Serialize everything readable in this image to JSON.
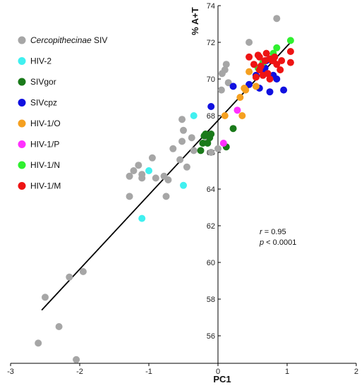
{
  "chart_data": {
    "type": "scatter",
    "xlabel": "PC1",
    "ylabel": "% A+T",
    "xlim": [
      -3,
      2
    ],
    "ylim": [
      54.5,
      74
    ],
    "xticks": [
      -3,
      -2,
      -1,
      0,
      1,
      2
    ],
    "yticks": [
      56,
      58,
      60,
      62,
      64,
      66,
      68,
      70,
      72,
      74
    ],
    "legend_position": "top-left",
    "grid": false,
    "series": [
      {
        "name": "Cercopithecinae SIV",
        "name_italic": "Cercopithecinae",
        "name_rest": " SIV",
        "color": "#a6a6a6",
        "points": [
          [
            -2.6,
            55.6
          ],
          [
            -2.3,
            56.5
          ],
          [
            -2.05,
            54.7
          ],
          [
            -2.5,
            58.1
          ],
          [
            -2.15,
            59.2
          ],
          [
            -1.95,
            59.5
          ],
          [
            -1.28,
            63.6
          ],
          [
            -1.28,
            64.7
          ],
          [
            -1.22,
            65.0
          ],
          [
            -1.15,
            65.3
          ],
          [
            -1.1,
            64.6
          ],
          [
            -1.1,
            64.8
          ],
          [
            -0.95,
            65.7
          ],
          [
            -0.9,
            64.6
          ],
          [
            -0.78,
            64.7
          ],
          [
            -0.75,
            63.6
          ],
          [
            -0.72,
            64.5
          ],
          [
            -0.65,
            66.2
          ],
          [
            -0.55,
            65.6
          ],
          [
            -0.52,
            66.6
          ],
          [
            -0.45,
            65.2
          ],
          [
            -0.5,
            67.2
          ],
          [
            -0.52,
            67.8
          ],
          [
            -0.38,
            66.8
          ],
          [
            -0.35,
            66.1
          ],
          [
            -0.15,
            66.6
          ],
          [
            -0.1,
            66.0
          ],
          [
            0.0,
            66.2
          ],
          [
            0.05,
            69.4
          ],
          [
            0.06,
            70.3
          ],
          [
            0.1,
            70.5
          ],
          [
            0.12,
            70.8
          ],
          [
            0.15,
            69.8
          ],
          [
            0.45,
            72.0
          ],
          [
            0.85,
            73.3
          ]
        ]
      },
      {
        "name": "HIV-2",
        "color": "#40f0f0",
        "points": [
          [
            -1.1,
            62.4
          ],
          [
            -1.0,
            65.0
          ],
          [
            -0.5,
            64.2
          ],
          [
            -0.35,
            68.0
          ]
        ]
      },
      {
        "name": "SIVgor",
        "color": "#1a7a1a",
        "points": [
          [
            -0.25,
            66.1
          ],
          [
            -0.22,
            66.5
          ],
          [
            -0.2,
            66.9
          ],
          [
            -0.18,
            67.0
          ],
          [
            -0.15,
            66.5
          ],
          [
            -0.12,
            66.8
          ],
          [
            -0.1,
            67.0
          ],
          [
            0.12,
            66.3
          ],
          [
            0.22,
            67.3
          ]
        ]
      },
      {
        "name": "SIVcpz",
        "color": "#1010e0",
        "points": [
          [
            -0.1,
            68.5
          ],
          [
            0.22,
            69.6
          ],
          [
            0.45,
            69.7
          ],
          [
            0.55,
            70.2
          ],
          [
            0.6,
            69.5
          ],
          [
            0.65,
            70.4
          ],
          [
            0.7,
            71.0
          ],
          [
            0.75,
            69.3
          ],
          [
            0.85,
            70.0
          ],
          [
            0.95,
            69.4
          ],
          [
            0.8,
            70.2
          ],
          [
            0.68,
            70.6
          ]
        ]
      },
      {
        "name": "HIV-1/O",
        "color": "#f5a020",
        "points": [
          [
            0.1,
            68.0
          ],
          [
            0.35,
            68.0
          ],
          [
            0.32,
            69.0
          ],
          [
            0.4,
            69.4
          ],
          [
            0.45,
            70.4
          ],
          [
            0.38,
            69.5
          ],
          [
            0.55,
            69.6
          ]
        ]
      },
      {
        "name": "HIV-1/P",
        "color": "#ff30ff",
        "points": [
          [
            0.08,
            66.5
          ],
          [
            0.28,
            68.3
          ]
        ]
      },
      {
        "name": "HIV-1/N",
        "color": "#30f030",
        "points": [
          [
            1.05,
            72.1
          ],
          [
            0.85,
            71.7
          ],
          [
            0.8,
            71.4
          ],
          [
            0.65,
            70.9
          ],
          [
            0.58,
            70.6
          ]
        ]
      },
      {
        "name": "HIV-1/M",
        "color": "#ee1414",
        "points": [
          [
            0.45,
            71.2
          ],
          [
            0.52,
            70.8
          ],
          [
            0.55,
            70.1
          ],
          [
            0.58,
            71.3
          ],
          [
            0.6,
            70.5
          ],
          [
            0.62,
            70.7
          ],
          [
            0.65,
            70.2
          ],
          [
            0.68,
            71.0
          ],
          [
            0.7,
            71.4
          ],
          [
            0.72,
            70.3
          ],
          [
            0.75,
            70.0
          ],
          [
            0.78,
            71.0
          ],
          [
            0.82,
            71.2
          ],
          [
            0.85,
            70.8
          ],
          [
            0.9,
            70.5
          ],
          [
            0.92,
            71.0
          ],
          [
            1.05,
            70.9
          ],
          [
            1.05,
            71.5
          ],
          [
            0.75,
            71.1
          ],
          [
            0.6,
            71.2
          ],
          [
            0.8,
            71.0
          ]
        ]
      }
    ],
    "regression": {
      "x": [
        -2.55,
        1.05
      ],
      "y": [
        57.4,
        72.0
      ],
      "color": "#000000"
    },
    "annotations": [
      {
        "var": "r",
        "text": " = 0.95"
      },
      {
        "var": "p",
        "text": " < 0.0001"
      }
    ]
  }
}
